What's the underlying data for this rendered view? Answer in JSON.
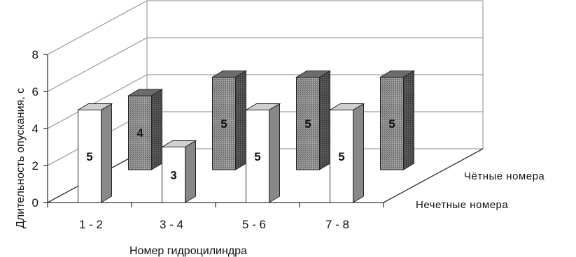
{
  "chart_data": {
    "type": "bar",
    "style": "3d-clustered-columns",
    "categories": [
      "1 - 2",
      "3 - 4",
      "5 - 6",
      "7 - 8"
    ],
    "series": [
      {
        "name": "Нечетные  номера",
        "values": [
          5,
          3,
          5,
          5
        ],
        "labels": [
          "5",
          "3",
          "5",
          "5"
        ],
        "color": "#ffffff"
      },
      {
        "name": "Чётные номера",
        "values": [
          4,
          5,
          5,
          5
        ],
        "labels": [
          "4",
          "5",
          "5",
          "5"
        ],
        "color": "#8c8c8c"
      }
    ],
    "ylim": [
      0,
      8
    ],
    "yticks": [
      "0",
      "2",
      "4",
      "6",
      "8"
    ],
    "xlabel": "Номер   гидроцилиндра",
    "ylabel": "Длительность опускания, с",
    "grid": true,
    "legend": "series names on depth axis, right side"
  }
}
